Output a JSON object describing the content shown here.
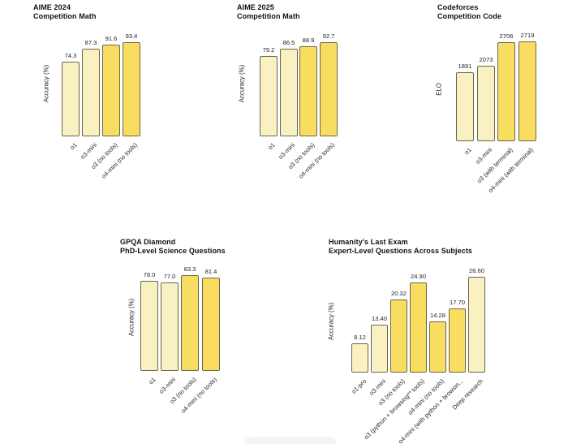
{
  "colors": {
    "bar_light": "#FAF1C3",
    "bar_emphasis": "#F9DD60",
    "bar_border": "#6B6649",
    "title_text": "#111111",
    "label_text": "#2A2A2A"
  },
  "chart_data": [
    {
      "type": "bar",
      "title": "AIME 2024",
      "subtitle": "Competition Math",
      "xlabel": "",
      "ylabel": "Accuracy (%)",
      "ylim": [
        0,
        100
      ],
      "grid": false,
      "legend": false,
      "categories": [
        "o1",
        "o3-mini",
        "o3 (no tools)",
        "o4-mini (no tools)"
      ],
      "values": [
        74.3,
        87.3,
        91.6,
        93.4
      ],
      "value_labels": [
        "74.3",
        "87.3",
        "91.6",
        "93.4"
      ],
      "emphasized": [
        false,
        false,
        true,
        true
      ]
    },
    {
      "type": "bar",
      "title": "AIME 2025",
      "subtitle": "Competition Math",
      "xlabel": "",
      "ylabel": "Accuracy (%)",
      "ylim": [
        0,
        100
      ],
      "grid": false,
      "legend": false,
      "categories": [
        "o1",
        "o3-mini",
        "o3 (no tools)",
        "o4-mini (no tools)"
      ],
      "values": [
        79.2,
        86.5,
        88.9,
        92.7
      ],
      "value_labels": [
        "79.2",
        "86.5",
        "88.9",
        "92.7"
      ],
      "emphasized": [
        false,
        false,
        true,
        true
      ]
    },
    {
      "type": "bar",
      "title": "Codeforces",
      "subtitle": "Competition Code",
      "xlabel": "",
      "ylabel": "ELO",
      "ylim": [
        0,
        2800
      ],
      "grid": false,
      "legend": false,
      "categories": [
        "o1",
        "o3-mini",
        "o3 (with terminal)",
        "o4-mini (with terminal)"
      ],
      "values": [
        1891,
        2073,
        2706,
        2719
      ],
      "value_labels": [
        "1891",
        "2073",
        "2706",
        "2719"
      ],
      "emphasized": [
        false,
        false,
        true,
        true
      ]
    },
    {
      "type": "bar",
      "title": "GPQA Diamond",
      "subtitle": "PhD-Level Science Questions",
      "xlabel": "",
      "ylabel": "Accuracy (%)",
      "ylim": [
        0,
        100
      ],
      "grid": false,
      "legend": false,
      "categories": [
        "o1",
        "o3-mini",
        "o3 (no tools)",
        "o4-mini (no tools)"
      ],
      "values": [
        78.0,
        77.0,
        83.3,
        81.4
      ],
      "value_labels": [
        "78.0",
        "77.0",
        "83.3",
        "81.4"
      ],
      "emphasized": [
        false,
        false,
        true,
        true
      ]
    },
    {
      "type": "bar",
      "title": "Humanity's Last Exam",
      "subtitle": "Expert-Level Questions Across Subjects",
      "xlabel": "",
      "ylabel": "Accuracy (%)",
      "ylim": [
        0,
        30
      ],
      "grid": false,
      "legend": false,
      "categories": [
        "o1-pro",
        "o3-mini",
        "o3 (no tools)",
        "o3 (python + browsing** tools)",
        "o4-mini (no tools)",
        "o4-mini (with python + browsin...",
        "Deep research"
      ],
      "values": [
        8.12,
        13.4,
        20.32,
        24.9,
        14.28,
        17.7,
        26.6
      ],
      "value_labels": [
        "8.12",
        "13.40",
        "20.32",
        "24.90",
        "14.28",
        "17.70",
        "26.60"
      ],
      "emphasized": [
        false,
        false,
        true,
        true,
        true,
        true,
        false
      ]
    }
  ]
}
